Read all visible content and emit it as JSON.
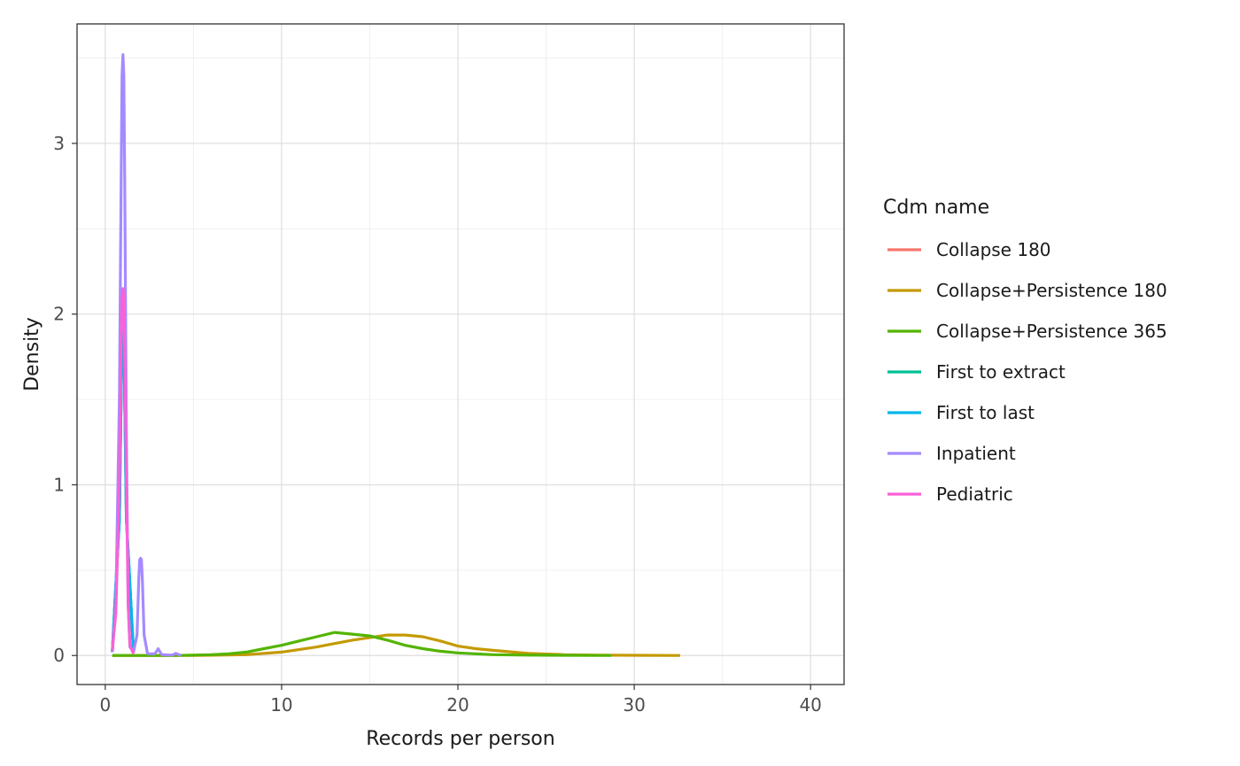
{
  "chart_data": {
    "type": "line",
    "title": "",
    "xlabel": "Records per person",
    "ylabel": "Density",
    "xlim": [
      -1.6,
      41.9
    ],
    "ylim": [
      -0.17,
      3.7
    ],
    "x_ticks": [
      0,
      10,
      20,
      30,
      40
    ],
    "x_tick_labels": [
      "0",
      "10",
      "20",
      "30",
      "40"
    ],
    "y_ticks": [
      0,
      1,
      2,
      3
    ],
    "y_tick_labels": [
      "0",
      "1",
      "2",
      "3"
    ],
    "grid": true,
    "legend": {
      "title": "Cdm name",
      "placement": "right"
    },
    "series": [
      {
        "name": "Collapse 180",
        "color": "#F8766D",
        "x": [
          0.4,
          0.8,
          0.95,
          1.0,
          1.05,
          1.2,
          1.6
        ],
        "y": [
          0.02,
          0.8,
          1.9,
          2.05,
          1.9,
          0.8,
          0.02
        ]
      },
      {
        "name": "Collapse+Persistence 180",
        "color": "#C49A00",
        "x": [
          0.4,
          5,
          8,
          10,
          12,
          14,
          16,
          17,
          18,
          19,
          20,
          21,
          22,
          24,
          26,
          28,
          30,
          32.6
        ],
        "y": [
          0,
          0,
          0.005,
          0.02,
          0.05,
          0.09,
          0.12,
          0.12,
          0.11,
          0.085,
          0.055,
          0.04,
          0.03,
          0.012,
          0.005,
          0.002,
          0.001,
          0
        ]
      },
      {
        "name": "Collapse+Persistence 365",
        "color": "#53B400",
        "x": [
          0.4,
          4,
          6,
          7,
          8,
          9,
          10,
          11,
          12,
          13,
          14,
          15,
          16,
          17,
          18,
          19,
          20,
          22,
          24,
          26,
          28.7
        ],
        "y": [
          0,
          0,
          0.005,
          0.01,
          0.02,
          0.04,
          0.06,
          0.085,
          0.11,
          0.135,
          0.125,
          0.115,
          0.09,
          0.06,
          0.04,
          0.025,
          0.015,
          0.005,
          0.002,
          0.001,
          0
        ]
      },
      {
        "name": "First to extract",
        "color": "#00C094",
        "x": [
          0.4,
          0.8,
          0.95,
          1.0,
          1.05,
          1.2,
          1.6
        ],
        "y": [
          0.02,
          0.8,
          1.9,
          2.05,
          1.9,
          0.8,
          0.02
        ]
      },
      {
        "name": "First to last",
        "color": "#00B6EB",
        "x": [
          0.4,
          0.8,
          0.95,
          1.0,
          1.05,
          1.2,
          1.6
        ],
        "y": [
          0.02,
          0.8,
          1.9,
          2.05,
          1.9,
          0.8,
          0.02
        ]
      },
      {
        "name": "Inpatient",
        "color": "#A58AFF",
        "x": [
          0.4,
          0.6,
          0.8,
          0.9,
          0.95,
          1.0,
          1.05,
          1.1,
          1.2,
          1.3,
          1.4,
          1.6,
          1.8,
          1.9,
          1.95,
          2.0,
          2.05,
          2.1,
          2.2,
          2.4,
          2.8,
          2.95,
          3.0,
          3.05,
          3.2,
          3.8,
          3.95,
          4.0,
          4.05,
          4.3
        ],
        "y": [
          0.02,
          0.3,
          1.5,
          2.8,
          3.4,
          3.52,
          3.4,
          2.8,
          1.3,
          0.3,
          0.05,
          0.02,
          0.12,
          0.45,
          0.56,
          0.57,
          0.56,
          0.45,
          0.12,
          0.01,
          0.01,
          0.03,
          0.04,
          0.03,
          0.005,
          0.002,
          0.01,
          0.012,
          0.01,
          0
        ]
      },
      {
        "name": "Pediatric",
        "color": "#FB61D7",
        "x": [
          0.4,
          0.6,
          0.8,
          0.9,
          0.95,
          1.0,
          1.05,
          1.1,
          1.2,
          1.3,
          1.4,
          1.6
        ],
        "y": [
          0.03,
          0.25,
          1.0,
          1.8,
          2.1,
          2.15,
          2.1,
          1.8,
          1.0,
          0.3,
          0.06,
          0.01
        ]
      }
    ]
  }
}
